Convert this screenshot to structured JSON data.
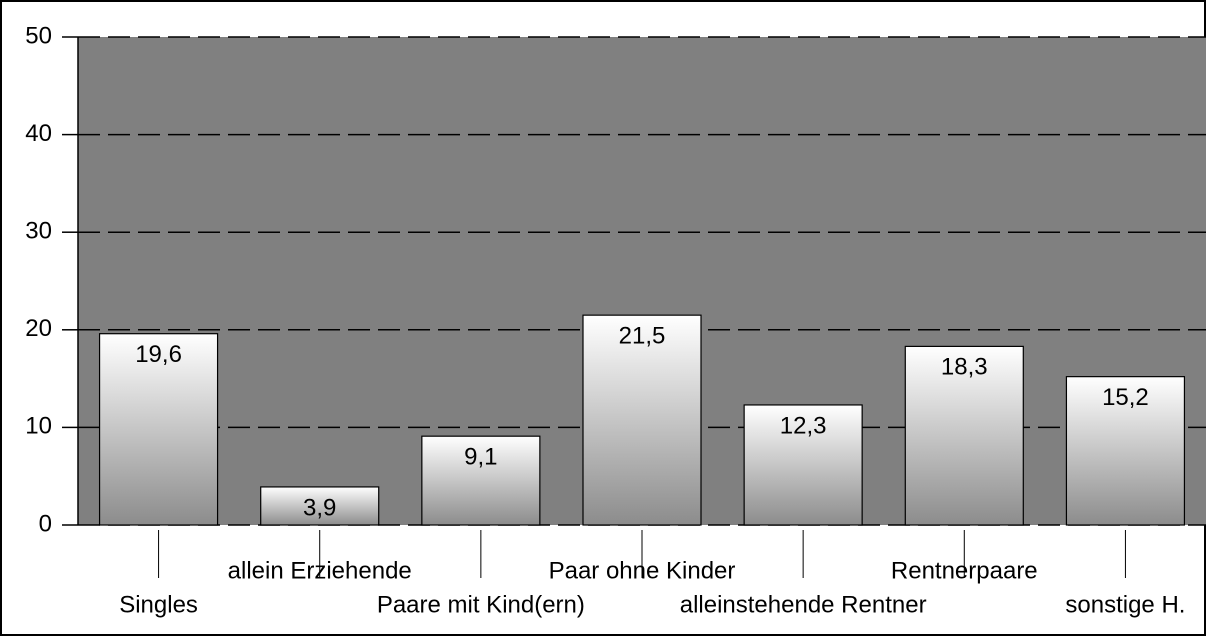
{
  "chart_data": {
    "type": "bar",
    "categories": [
      "Singles",
      "allein Erziehende",
      "Paare mit Kind(ern)",
      "Paar ohne Kinder",
      "alleinstehende Rentner",
      "Rentnerpaare",
      "sonstige H."
    ],
    "values": [
      19.6,
      3.9,
      9.1,
      21.5,
      12.3,
      18.3,
      15.2
    ],
    "value_labels": [
      "19,6",
      "3,9",
      "9,1",
      "21,5",
      "12,3",
      "18,3",
      "15,2"
    ],
    "ylim": [
      0,
      50
    ],
    "yticks": [
      0,
      10,
      20,
      30,
      40,
      50
    ],
    "grid": true
  }
}
